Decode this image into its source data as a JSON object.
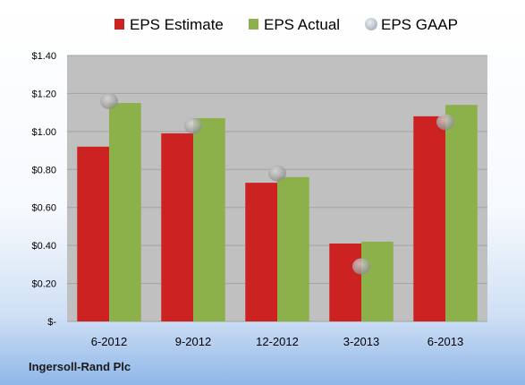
{
  "company": "Ingersoll-Rand Plc",
  "chart_data": {
    "type": "bar",
    "categories": [
      "6-2012",
      "9-2012",
      "12-2012",
      "3-2013",
      "6-2013"
    ],
    "series": [
      {
        "name": "EPS Estimate",
        "kind": "bar",
        "color": "#cc2222",
        "values": [
          0.92,
          0.99,
          0.73,
          0.41,
          1.08
        ]
      },
      {
        "name": "EPS Actual",
        "kind": "bar",
        "color": "#8cb04a",
        "values": [
          1.15,
          1.07,
          0.76,
          0.42,
          1.14
        ]
      },
      {
        "name": "EPS GAAP",
        "kind": "marker",
        "color": "#a9a9a9",
        "values": [
          1.16,
          1.03,
          0.78,
          0.29,
          1.05
        ]
      }
    ],
    "yticks": [
      "$-",
      "$0.20",
      "$0.40",
      "$0.60",
      "$0.80",
      "$1.00",
      "$1.20",
      "$1.40"
    ],
    "ylim": [
      0,
      1.4
    ],
    "legend_position": "top",
    "grid": true
  }
}
